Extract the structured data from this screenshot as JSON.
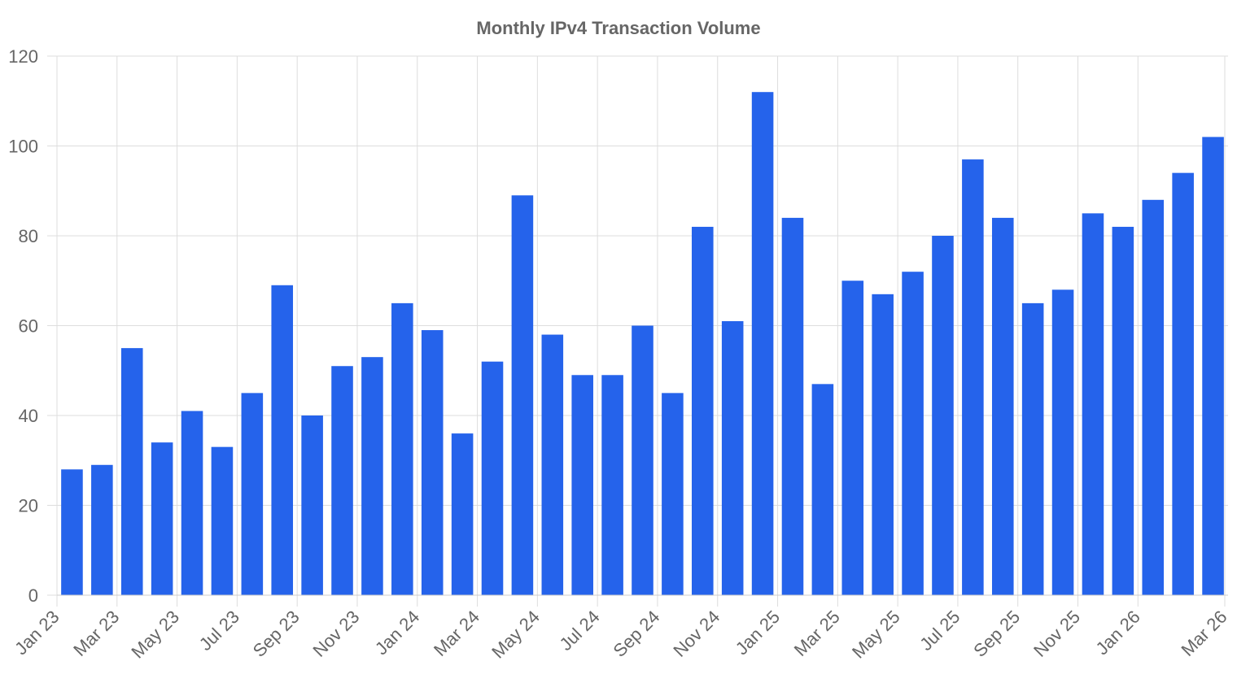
{
  "chart_data": {
    "type": "bar",
    "title": "Monthly IPv4 Transaction Volume",
    "xlabel": "",
    "ylabel": "",
    "ylim": [
      0,
      120
    ],
    "yticks": [
      0,
      20,
      40,
      60,
      80,
      100,
      120
    ],
    "grid": true,
    "bar_color": "#2563eb",
    "categories": [
      "Jan 23",
      "Feb 23",
      "Mar 23",
      "Apr 23",
      "May 23",
      "Jun 23",
      "Jul 23",
      "Aug 23",
      "Sep 23",
      "Oct 23",
      "Nov 23",
      "Dec 23",
      "Jan 24",
      "Feb 24",
      "Mar 24",
      "Apr 24",
      "May 24",
      "Jun 24",
      "Jul 24",
      "Aug 24",
      "Sep 24",
      "Oct 24",
      "Nov 24",
      "Dec 24",
      "Jan 25",
      "Feb 25",
      "Mar 25",
      "Apr 25",
      "May 25",
      "Jun 25",
      "Jul 25",
      "Aug 25",
      "Sep 25",
      "Oct 25",
      "Nov 25",
      "Dec 25",
      "Jan 26",
      "Feb 26",
      "Mar 26"
    ],
    "values": [
      28,
      29,
      55,
      34,
      41,
      33,
      45,
      69,
      40,
      51,
      53,
      65,
      59,
      36,
      52,
      89,
      58,
      49,
      49,
      60,
      45,
      82,
      61,
      112,
      84,
      47,
      70,
      67,
      72,
      80,
      97,
      84,
      65,
      68,
      85,
      82,
      88,
      94,
      102
    ],
    "xtick_labels": [
      "Jan 23",
      "Mar 23",
      "May 23",
      "Jul 23",
      "Sep 23",
      "Nov 23",
      "Jan 24",
      "Mar 24",
      "May 24",
      "Jul 24",
      "Sep 24",
      "Nov 24",
      "Jan 25",
      "Mar 25",
      "May 25",
      "Jul 25",
      "Sep 25",
      "Nov 25",
      "Jan 26",
      "Mar 26"
    ]
  }
}
